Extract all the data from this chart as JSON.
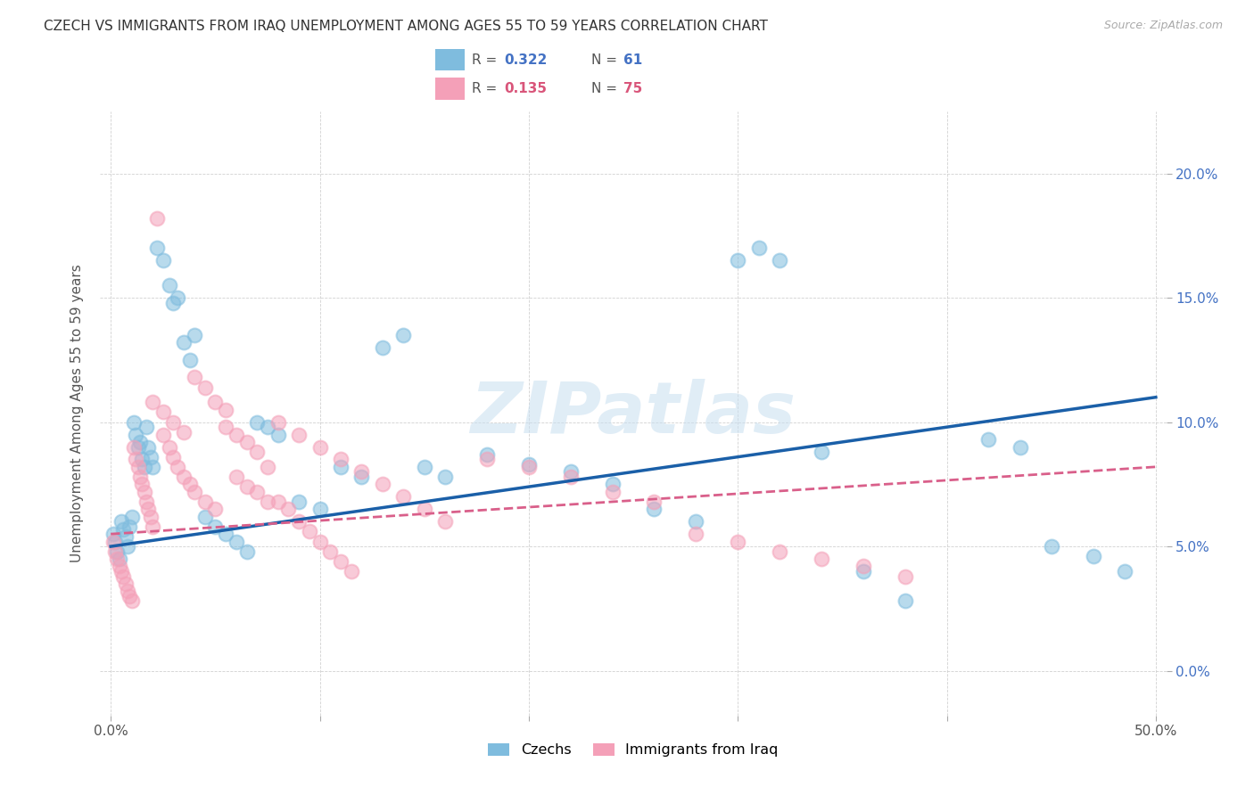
{
  "title": "CZECH VS IMMIGRANTS FROM IRAQ UNEMPLOYMENT AMONG AGES 55 TO 59 YEARS CORRELATION CHART",
  "source": "Source: ZipAtlas.com",
  "ylabel": "Unemployment Among Ages 55 to 59 years",
  "xlim": [
    -0.005,
    0.505
  ],
  "ylim": [
    -0.018,
    0.225
  ],
  "xticks": [
    0.0,
    0.1,
    0.2,
    0.3,
    0.4,
    0.5
  ],
  "yticks": [
    0.0,
    0.05,
    0.1,
    0.15,
    0.2
  ],
  "xticklabels_shown": [
    "0.0%",
    "50.0%"
  ],
  "xticks_shown": [
    0.0,
    0.5
  ],
  "yticklabels": [
    "0.0%",
    "5.0%",
    "10.0%",
    "15.0%",
    "20.0%"
  ],
  "blue_color": "#7fbcde",
  "pink_color": "#f4a0b8",
  "blue_line_color": "#1a5fa8",
  "pink_line_color": "#d95f8a",
  "watermark_color": "#c8dff0",
  "czechs_x": [
    0.001,
    0.002,
    0.003,
    0.004,
    0.005,
    0.006,
    0.007,
    0.008,
    0.009,
    0.01,
    0.011,
    0.012,
    0.013,
    0.014,
    0.015,
    0.016,
    0.017,
    0.018,
    0.019,
    0.02,
    0.022,
    0.025,
    0.028,
    0.03,
    0.032,
    0.035,
    0.038,
    0.04,
    0.045,
    0.05,
    0.055,
    0.06,
    0.065,
    0.07,
    0.075,
    0.08,
    0.09,
    0.1,
    0.11,
    0.12,
    0.13,
    0.14,
    0.15,
    0.16,
    0.18,
    0.2,
    0.22,
    0.24,
    0.26,
    0.28,
    0.3,
    0.32,
    0.36,
    0.38,
    0.42,
    0.435,
    0.45,
    0.47,
    0.485,
    0.34,
    0.31
  ],
  "czechs_y": [
    0.055,
    0.052,
    0.048,
    0.045,
    0.06,
    0.057,
    0.054,
    0.05,
    0.058,
    0.062,
    0.1,
    0.095,
    0.09,
    0.092,
    0.085,
    0.082,
    0.098,
    0.09,
    0.086,
    0.082,
    0.17,
    0.165,
    0.155,
    0.148,
    0.15,
    0.132,
    0.125,
    0.135,
    0.062,
    0.058,
    0.055,
    0.052,
    0.048,
    0.1,
    0.098,
    0.095,
    0.068,
    0.065,
    0.082,
    0.078,
    0.13,
    0.135,
    0.082,
    0.078,
    0.087,
    0.083,
    0.08,
    0.075,
    0.065,
    0.06,
    0.165,
    0.165,
    0.04,
    0.028,
    0.093,
    0.09,
    0.05,
    0.046,
    0.04,
    0.088,
    0.17
  ],
  "iraq_x": [
    0.001,
    0.002,
    0.003,
    0.004,
    0.005,
    0.006,
    0.007,
    0.008,
    0.009,
    0.01,
    0.011,
    0.012,
    0.013,
    0.014,
    0.015,
    0.016,
    0.017,
    0.018,
    0.019,
    0.02,
    0.022,
    0.025,
    0.028,
    0.03,
    0.032,
    0.035,
    0.038,
    0.04,
    0.045,
    0.05,
    0.055,
    0.06,
    0.065,
    0.07,
    0.075,
    0.08,
    0.09,
    0.1,
    0.11,
    0.12,
    0.13,
    0.14,
    0.15,
    0.16,
    0.18,
    0.2,
    0.22,
    0.24,
    0.26,
    0.28,
    0.3,
    0.32,
    0.34,
    0.36,
    0.38,
    0.02,
    0.025,
    0.03,
    0.035,
    0.04,
    0.045,
    0.05,
    0.055,
    0.06,
    0.065,
    0.07,
    0.075,
    0.08,
    0.085,
    0.09,
    0.095,
    0.1,
    0.105,
    0.11,
    0.115
  ],
  "iraq_y": [
    0.052,
    0.048,
    0.045,
    0.042,
    0.04,
    0.038,
    0.035,
    0.032,
    0.03,
    0.028,
    0.09,
    0.085,
    0.082,
    0.078,
    0.075,
    0.072,
    0.068,
    0.065,
    0.062,
    0.058,
    0.182,
    0.095,
    0.09,
    0.086,
    0.082,
    0.078,
    0.075,
    0.072,
    0.068,
    0.065,
    0.098,
    0.095,
    0.092,
    0.088,
    0.082,
    0.1,
    0.095,
    0.09,
    0.085,
    0.08,
    0.075,
    0.07,
    0.065,
    0.06,
    0.085,
    0.082,
    0.078,
    0.072,
    0.068,
    0.055,
    0.052,
    0.048,
    0.045,
    0.042,
    0.038,
    0.108,
    0.104,
    0.1,
    0.096,
    0.118,
    0.114,
    0.108,
    0.105,
    0.078,
    0.074,
    0.072,
    0.068,
    0.068,
    0.065,
    0.06,
    0.056,
    0.052,
    0.048,
    0.044,
    0.04
  ]
}
